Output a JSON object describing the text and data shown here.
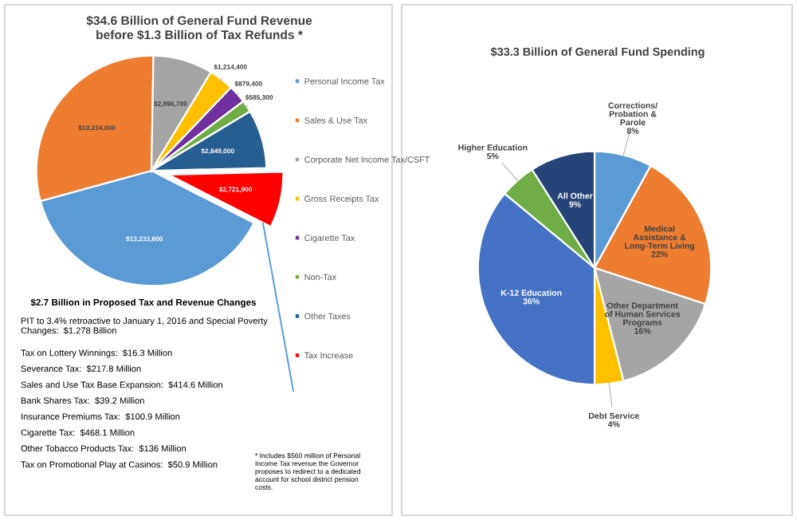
{
  "chart_data": [
    {
      "type": "pie",
      "title": "$34.6 Billion of General Fund Revenue\nbefore $1.3 Billion of Tax Refunds *",
      "categories": [
        "Personal Income Tax",
        "Sales & Use Tax",
        "Corporate Net Income Tax/CSFT",
        "Gross Receipts Tax",
        "Cigarette Tax",
        "Non-Tax",
        "Other Taxes",
        "Tax Increase"
      ],
      "values": [
        13233600,
        10214000,
        2896700,
        1214400,
        879400,
        585300,
        2849000,
        2721900
      ],
      "value_labels": [
        "$13,233,600",
        "$10,214,000",
        "$2,896,700",
        "$1,214,400",
        "$879,400",
        "$585,300",
        "$2,849,000",
        "$2,721,900"
      ],
      "colors": [
        "#5b9bd5",
        "#ed7d31",
        "#a5a5a5",
        "#ffc000",
        "#7030a0",
        "#70ad47",
        "#255e91",
        "#ff0000"
      ],
      "legend": "right",
      "annotations": [
        "$2.7 Billion in Proposed Tax and Revenue Changes",
        "PIT to 3.4% retroactive to January 1, 2016 and Special Poverty\nChanges:  $1.278 Billion",
        "Tax on Lottery Winnings:  $16.3 Million",
        "Severance Tax:  $217.8 Million",
        "Sales and Use Tax Base Expansion:  $414.6 Million",
        "Bank Shares Tax:  $39.2 Million",
        "Insurance Premiums Tax:  $100.9 Million",
        "Cigarette Tax:  $468.1 Million",
        "Other Tobacco Products Tax:  $136 Million",
        "Tax on Promotional Play at Casinos:  $50.9 Million",
        "* Includes $560 million of Personal\nIncome Tax revenue the Governor\nproposes to redirect to a dedicated\naccount for school district pension\ncosts."
      ]
    },
    {
      "type": "pie",
      "title": "$33.3 Billion of General Fund Spending",
      "categories": [
        "Corrections/\nProbation &\nParole",
        "Medical\nAssistance &\nLong-Term Living",
        "Other Department\nof Human Services\nPrograms",
        "Debt Service",
        "K-12 Education",
        "Higher Education",
        "All Other"
      ],
      "values": [
        8,
        22,
        16,
        4,
        36,
        5,
        9
      ],
      "value_labels": [
        "8%",
        "22%",
        "16%",
        "4%",
        "36%",
        "5%",
        "9%"
      ],
      "colors": [
        "#5b9bd5",
        "#ed7d31",
        "#a5a5a5",
        "#ffc000",
        "#4472c4",
        "#70ad47",
        "#264478"
      ],
      "legend": false
    }
  ]
}
